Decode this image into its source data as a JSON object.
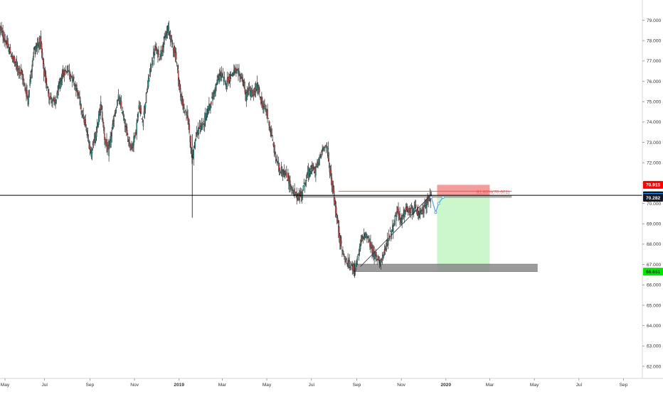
{
  "chart_data": {
    "type": "candlestick",
    "grid": false,
    "colors": {
      "up": "#26a69a",
      "down": "#ef5350",
      "wick": "#2a2a2a",
      "price_line": "#000000",
      "fib_line": "#ef5350",
      "stop_zone": "#f28b8b",
      "target_zone": "#c9f5c9",
      "support_zone": "#8a8a8a",
      "badge_red": "#ff0000",
      "badge_blue": "#2196f3",
      "badge_black": "#131722",
      "badge_green": "#00e600",
      "projection": "#42a5f5"
    },
    "x_axis": {
      "labels": [
        "May",
        "Jul",
        "Sep",
        "Nov",
        "2019",
        "Mar",
        "May",
        "Jul",
        "Sep",
        "Nov",
        "2020",
        "Mar",
        "May",
        "Jul",
        "Sep"
      ],
      "bold": [
        "2019",
        "2020"
      ],
      "tick_index": [
        0,
        61,
        123,
        184,
        245,
        304,
        365,
        426,
        488,
        549,
        610,
        670,
        731,
        792,
        853
      ]
    },
    "y_axis": {
      "ticks": [
        "62.000",
        "63.000",
        "64.000",
        "65.000",
        "66.000",
        "67.000",
        "68.000",
        "69.000",
        "70.000",
        "71.000",
        "72.000",
        "73.000",
        "74.000",
        "75.000",
        "76.000",
        "77.000",
        "78.000",
        "79.000"
      ],
      "range": [
        61.3,
        79.8
      ]
    },
    "series_anchors": [
      [
        0,
        78.6
      ],
      [
        8,
        77.9
      ],
      [
        20,
        76.9
      ],
      [
        30,
        76.3
      ],
      [
        38,
        75.1
      ],
      [
        46,
        77.5
      ],
      [
        55,
        78.0
      ],
      [
        60,
        76.4
      ],
      [
        68,
        75.2
      ],
      [
        75,
        74.9
      ],
      [
        85,
        76.3
      ],
      [
        92,
        76.6
      ],
      [
        100,
        76.1
      ],
      [
        108,
        75.2
      ],
      [
        118,
        73.6
      ],
      [
        124,
        72.5
      ],
      [
        131,
        73.4
      ],
      [
        138,
        74.9
      ],
      [
        143,
        73.2
      ],
      [
        148,
        72.5
      ],
      [
        156,
        74.2
      ],
      [
        162,
        75.2
      ],
      [
        168,
        74.4
      ],
      [
        174,
        73.3
      ],
      [
        180,
        72.7
      ],
      [
        186,
        73.6
      ],
      [
        190,
        74.8
      ],
      [
        195,
        74.0
      ],
      [
        200,
        75.3
      ],
      [
        205,
        76.5
      ],
      [
        212,
        77.6
      ],
      [
        218,
        77.2
      ],
      [
        224,
        77.9
      ],
      [
        230,
        78.6
      ],
      [
        236,
        77.8
      ],
      [
        241,
        77.1
      ],
      [
        244,
        76.2
      ],
      [
        247,
        75.2
      ],
      [
        252,
        74.6
      ],
      [
        257,
        74.2
      ],
      [
        263,
        72.1
      ],
      [
        267,
        73.1
      ],
      [
        272,
        73.7
      ],
      [
        278,
        73.9
      ],
      [
        284,
        74.6
      ],
      [
        290,
        75.1
      ],
      [
        296,
        75.9
      ],
      [
        302,
        76.4
      ],
      [
        308,
        75.9
      ],
      [
        314,
        76.2
      ],
      [
        320,
        76.5
      ],
      [
        326,
        76.4
      ],
      [
        332,
        76.1
      ],
      [
        336,
        75.2
      ],
      [
        340,
        75.6
      ],
      [
        346,
        75.3
      ],
      [
        352,
        75.8
      ],
      [
        358,
        74.9
      ],
      [
        364,
        74.6
      ],
      [
        370,
        73.6
      ],
      [
        376,
        72.4
      ],
      [
        382,
        71.7
      ],
      [
        388,
        71.5
      ],
      [
        394,
        71.2
      ],
      [
        400,
        70.6
      ],
      [
        405,
        70.4
      ],
      [
        410,
        70.3
      ],
      [
        416,
        70.9
      ],
      [
        420,
        71.4
      ],
      [
        426,
        71.7
      ],
      [
        431,
        71.6
      ],
      [
        438,
        72.3
      ],
      [
        444,
        72.9
      ],
      [
        448,
        72.6
      ],
      [
        452,
        71.4
      ],
      [
        456,
        70.5
      ],
      [
        460,
        69.4
      ],
      [
        465,
        68.2
      ],
      [
        470,
        67.4
      ],
      [
        476,
        67.0
      ],
      [
        481,
        66.9
      ],
      [
        485,
        66.8
      ],
      [
        490,
        67.4
      ],
      [
        495,
        68.3
      ],
      [
        500,
        68.5
      ],
      [
        506,
        68.0
      ],
      [
        511,
        67.5
      ],
      [
        516,
        67.3
      ],
      [
        521,
        67.2
      ],
      [
        526,
        67.6
      ],
      [
        531,
        68.3
      ],
      [
        537,
        68.8
      ],
      [
        543,
        69.6
      ],
      [
        549,
        69.2
      ],
      [
        555,
        69.7
      ],
      [
        561,
        69.6
      ],
      [
        567,
        69.8
      ],
      [
        573,
        69.4
      ],
      [
        579,
        69.7
      ],
      [
        585,
        70.2
      ],
      [
        590,
        70.32
      ]
    ],
    "spikes": [
      {
        "index": 263,
        "high": 73.4,
        "low": 69.3
      },
      {
        "index": 485,
        "high": 67.2,
        "low": 66.4
      }
    ],
    "current_price": "70.400",
    "price_badges": [
      "70.915",
      "70.317",
      "70.282",
      "66.651"
    ],
    "fib_annotation": "61.80%(70.601)",
    "fib_level": 70.601,
    "fib_start_index": 463,
    "fib_end_index": 700,
    "resistance_zone": {
      "start_index": 410,
      "end_index": 700,
      "low": 70.28,
      "high": 70.4
    },
    "support_zone": {
      "start_index": 485,
      "end_index": 735,
      "low": 66.651,
      "high": 67.02
    },
    "trendline": {
      "from": [
        493,
        66.9
      ],
      "to": [
        586,
        70.28
      ]
    },
    "position": {
      "start_index": 598,
      "end_index": 670,
      "entry": 70.4,
      "stop": 70.915,
      "target": 66.651
    },
    "projection_path": [
      [
        590,
        70.3
      ],
      [
        596,
        69.56
      ],
      [
        600,
        70.0
      ],
      [
        606,
        70.3
      ]
    ]
  }
}
